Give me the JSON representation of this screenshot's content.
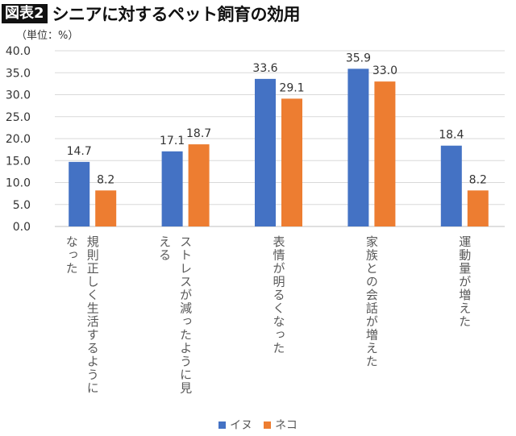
{
  "header": {
    "badge": "図表2",
    "title": "シニアに対するペット飼育の効用",
    "unit": "（単位：%）"
  },
  "chart_data": {
    "type": "bar",
    "title": "シニアに対するペット飼育の効用",
    "ylabel": "（単位：%）",
    "ylim": [
      0,
      40
    ],
    "yticks": [
      "0.0",
      "5.0",
      "10.0",
      "15.0",
      "20.0",
      "25.0",
      "30.0",
      "35.0",
      "40.0"
    ],
    "grid": true,
    "legend": "bottom",
    "categories": [
      "規則正しく生活するようになった",
      "ストレスが減ったように見える",
      "表情が明るくなった",
      "家族との会話が増えた",
      "運動量が増えた"
    ],
    "series": [
      {
        "name": "イヌ",
        "color": "#4472C4",
        "values": [
          14.7,
          17.1,
          33.6,
          35.9,
          18.4
        ],
        "labels": [
          "14.7",
          "17.1",
          "33.6",
          "35.9",
          "18.4"
        ]
      },
      {
        "name": "ネコ",
        "color": "#ED7D31",
        "values": [
          8.2,
          18.7,
          29.1,
          33.0,
          8.2
        ],
        "labels": [
          "8.2",
          "18.7",
          "29.1",
          "33.0",
          "8.2"
        ]
      }
    ]
  }
}
